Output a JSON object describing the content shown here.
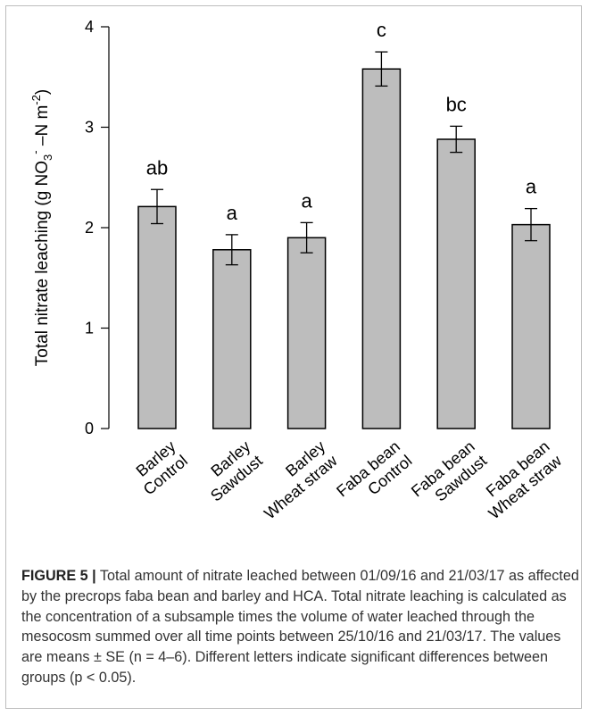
{
  "chart_data": {
    "type": "bar",
    "ylabel": "Total nitrate leaching (g NO3− −N m−2)",
    "ylabel_parts": {
      "prefix": "Total nitrate leaching (g NO",
      "sub": "3",
      "sup": "-",
      "middle": " –N m",
      "sup2": "-2",
      "suffix": ")"
    },
    "ylim": [
      0,
      4
    ],
    "yticks": [
      "0",
      "1",
      "2",
      "3",
      "4"
    ],
    "categories": [
      {
        "line1": "Barley",
        "line2": "Control"
      },
      {
        "line1": "Barley",
        "line2": "Sawdust"
      },
      {
        "line1": "Barley",
        "line2": "Wheat straw"
      },
      {
        "line1": "Faba bean",
        "line2": "Control"
      },
      {
        "line1": "Faba bean",
        "line2": "Sawdust"
      },
      {
        "line1": "Faba bean",
        "line2": "Wheat straw"
      }
    ],
    "values": [
      2.21,
      1.78,
      1.9,
      3.58,
      2.88,
      2.03
    ],
    "errors": [
      0.17,
      0.15,
      0.15,
      0.17,
      0.13,
      0.16
    ],
    "significance_letters": [
      "ab",
      "a",
      "a",
      "c",
      "bc",
      "a"
    ],
    "bar_color": "#bdbdbd",
    "grid": false,
    "legend": "none"
  },
  "caption": {
    "label": "FIGURE 5 |",
    "text": " Total amount of nitrate leached between 01/09/16 and 21/03/17 as affected by the precrops faba bean and barley and HCA. Total nitrate leaching is calculated as the concentration of a subsample times the volume of water leached through the mesocosm summed over all time points between 25/10/16 and 21/03/17. The values are means ± SE (n = 4–6). Different letters indicate significant differences between groups (p < 0.05)."
  }
}
